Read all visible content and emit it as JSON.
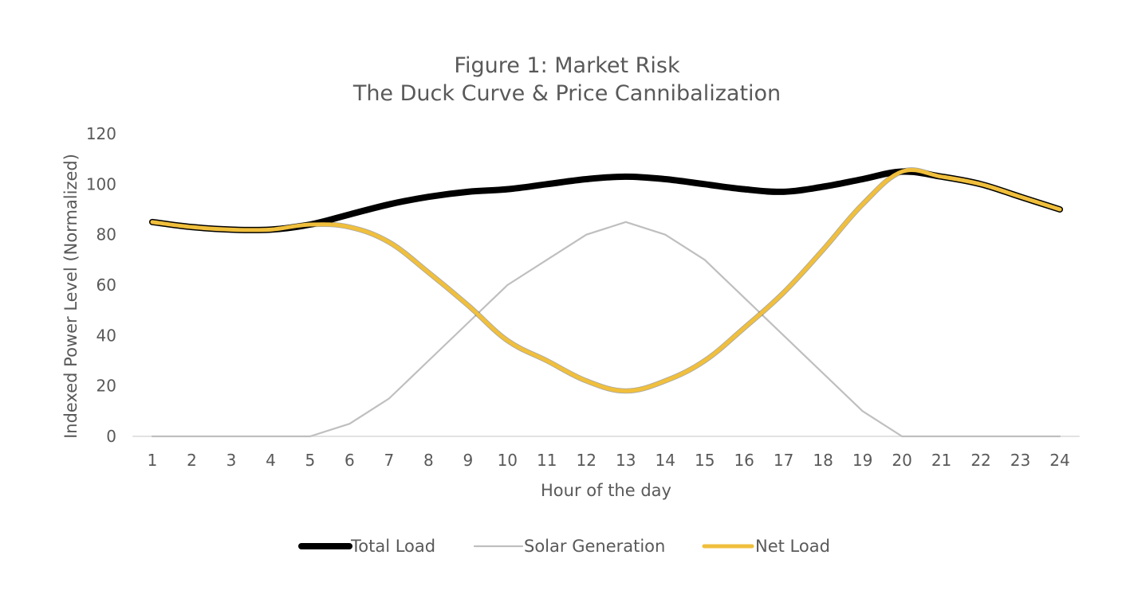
{
  "chart_data": {
    "type": "line",
    "title": "Figure 1: Market Risk",
    "subtitle": "The Duck Curve & Price Cannibalization",
    "xlabel": "Hour of the day",
    "ylabel": "Indexed Power Level (Normalized)",
    "ylim": [
      0,
      120
    ],
    "yticks": [
      0,
      20,
      40,
      60,
      80,
      100,
      120
    ],
    "categories": [
      "1",
      "2",
      "3",
      "4",
      "5",
      "6",
      "7",
      "8",
      "9",
      "10",
      "11",
      "12",
      "13",
      "14",
      "15",
      "16",
      "17",
      "18",
      "19",
      "20",
      "21",
      "22",
      "23",
      "24"
    ],
    "grid": false,
    "legend_position": "bottom",
    "series": [
      {
        "name": "Total Load",
        "color": "#000000",
        "values": [
          85,
          83,
          82,
          82,
          84,
          88,
          92,
          95,
          97,
          98,
          100,
          102,
          103,
          102,
          100,
          98,
          97,
          99,
          102,
          105,
          103,
          100,
          95,
          90
        ],
        "smooth": true
      },
      {
        "name": "Solar Generation",
        "color": "#bfbfbf",
        "values": [
          0,
          0,
          0,
          0,
          0,
          5,
          15,
          30,
          45,
          60,
          70,
          80,
          85,
          80,
          70,
          55,
          40,
          25,
          10,
          0,
          0,
          0,
          0,
          0
        ],
        "smooth": false
      },
      {
        "name": "Net Load",
        "color": "#f0bf3c",
        "values": [
          85,
          83,
          82,
          82,
          84,
          83,
          77,
          65,
          52,
          38,
          30,
          22,
          18,
          22,
          30,
          43,
          57,
          74,
          92,
          105,
          103,
          100,
          95,
          90
        ],
        "smooth": true
      }
    ]
  }
}
